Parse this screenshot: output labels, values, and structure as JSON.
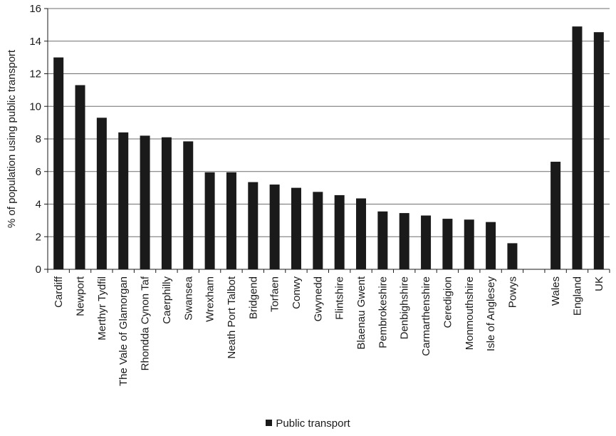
{
  "chart_data": {
    "type": "bar",
    "title": "",
    "xlabel": "",
    "ylabel": "% of population using public transport",
    "ylim": [
      0,
      16
    ],
    "yticks": [
      0,
      2,
      4,
      6,
      8,
      10,
      12,
      14,
      16
    ],
    "grid": "horizontal",
    "legend_position": "bottom",
    "bar_color": "#1a1a1a",
    "categories": [
      "Cardiff",
      "Newport",
      "Merthyr Tydfil",
      "The Vale of Glamorgan",
      "Rhondda Cynon Taf",
      "Caerphilly",
      "Swansea",
      "Wrexham",
      "Neath Port Talbot",
      "Bridgend",
      "Torfaen",
      "Conwy",
      "Gwynedd",
      "Flintshire",
      "Blaenau Gwent",
      "Pembrokeshire",
      "Denbighshire",
      "Carmarthenshire",
      "Ceredigion",
      "Monmouthshire",
      "Isle of Anglesey",
      "Powys",
      "",
      "Wales",
      "England",
      "UK"
    ],
    "series": [
      {
        "name": "Public transport",
        "values": [
          13.0,
          11.3,
          9.3,
          8.4,
          8.2,
          8.1,
          7.85,
          5.95,
          5.95,
          5.35,
          5.2,
          5.0,
          4.75,
          4.55,
          4.35,
          3.55,
          3.45,
          3.3,
          3.1,
          3.05,
          2.9,
          1.6,
          null,
          6.6,
          14.9,
          14.55
        ]
      }
    ]
  }
}
